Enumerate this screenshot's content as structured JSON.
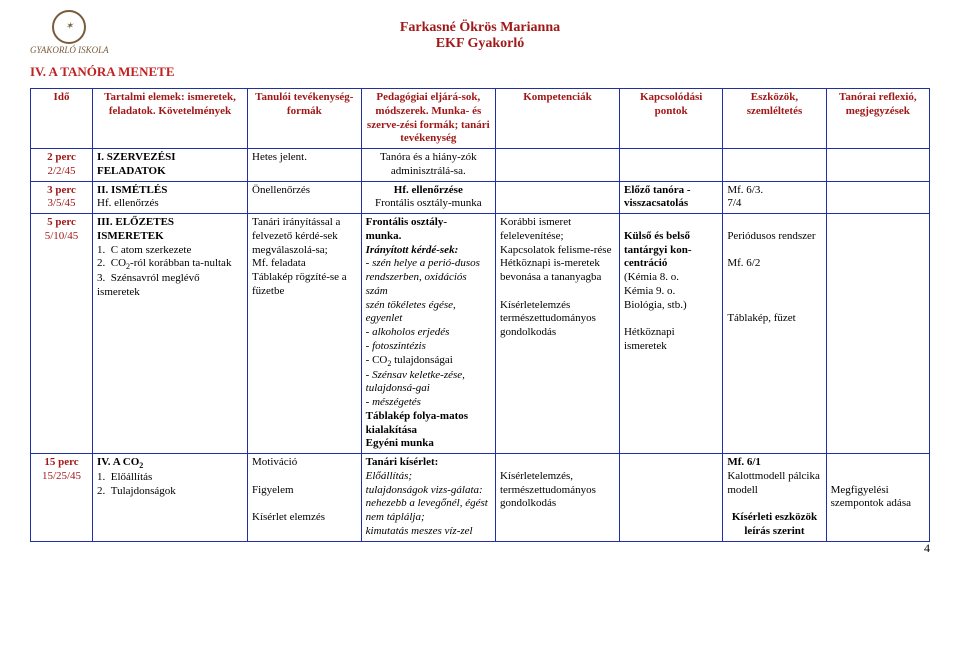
{
  "header": {
    "name": "Farkasné Ökrös Marianna",
    "school": "EKF Gyakorló"
  },
  "section": "IV. A TANÓRA MENETE",
  "cols": {
    "ido": "Idő",
    "tartalmi": "Tartalmi elemek: ismeretek, feladatok. Követelmények",
    "tanuloi": "Tanulói tevékenység-formák",
    "ped": "Pedagógiai eljárá-sok, módszerek. Munka- és szerve-zési formák; tanári tevékenység",
    "komp": "Kompetenciák",
    "kapcs": "Kapcsolódási pontok",
    "eszk": "Eszközök, szemléltetés",
    "refl": "Tanórai reflexió, megjegyzések"
  },
  "rows": [
    {
      "time": "2 perc",
      "timesub": "2/2/45",
      "tart_head": "I. SZERVEZÉSI FELADATOK",
      "tart_body": "",
      "tan": "Hetes jelent.",
      "ped": "Tanóra és a hiány-zók adminisztrálá-sa.",
      "komp": "",
      "kapcs": "",
      "eszk": "",
      "refl": ""
    },
    {
      "time": "3 perc",
      "timesub": "3/5/45",
      "tart_head": "II. ISMÉTLÉS",
      "tart_body": "Hf. ellenőrzés",
      "tan": "Önellenőrzés",
      "ped_b": "Hf. ellenőrzése",
      "ped_plain": "Frontális osztály-munka",
      "komp": "",
      "kapcs": "Előző tanóra - visszacsatolás",
      "eszk": "Mf. 6/3.\n7/4",
      "refl": ""
    },
    {
      "time": "5 perc",
      "timesub": "5/10/45",
      "tart_head": "III. ELŐZETES ISMERETEK",
      "tart_list": [
        "C atom szerkezete",
        "CO₂-ról korábban ta-nultak",
        "Szénsavról meglévő ismeretek"
      ],
      "tan": "Tanári irányítással a felvezető kérdé-sek megválaszolá-sa;\nMf. feladata\nTáblakép rögzíté-se a füzetbe",
      "ped": {
        "b1": "Frontális osztály-munka.",
        "b2": "Irányított kérdé-sek:",
        "it": "- szén helye a perió-dusos rendszerben, oxidációs szám\nszén tökéletes égése, egyenlet\n- alkoholos erjedés\n- fotoszintézis",
        "plain": "- CO₂ tulajdonságai",
        "it2": "-  Szénsav keletke-zése, tulajdonsá-gai\n-     mészégetés",
        "b3": "Táblakép folya-matos kialakítása\nEgyéni munka"
      },
      "komp": "Korábbi ismeret felelevenítése;\nKapcsolatok felisme-rése\nHétköznapi is-meretek bevonása a tananyagba\n\nKísérletelemzés\ntermészettudományos gondolkodás",
      "kapcs": "\nKülső és belső tantárgyi kon-centráció\n(Kémia 8. o.\nKémia 9. o.\nBiológia, stb.)\n\nHétköznapi ismeretek",
      "eszk": "\nPeriódusos rendszer\n\nMf. 6/2\n\n\n\nTáblakép, füzet",
      "refl": ""
    },
    {
      "time": "15 perc",
      "timesub": "15/25/45",
      "tart_head": "IV. A CO₂",
      "tart_list": [
        "Előállítás",
        "Tulajdonságok"
      ],
      "tan": "Motiváció\n\nFigyelem\n\nKísérlet elemzés",
      "ped_b": "Tanári kísérlet:",
      "ped_it": "Előállítás;\ntulajdonságok vizs-gálata: nehezebb a levegőnél, égést nem táplálja;\nkimutatás meszes víz-zel",
      "komp": "\nKísérletelemzés, természettudományos gondolkodás",
      "kapcs": "",
      "eszk_b": "Mf. 6/1",
      "eszk_plain": "\nKalottmodell pálcika modell\n",
      "eszk_b2": "Kísérleti eszközök leírás szerint",
      "refl": "\n\nMegfigyelési szempontok adása"
    }
  ],
  "pagenum": "4"
}
